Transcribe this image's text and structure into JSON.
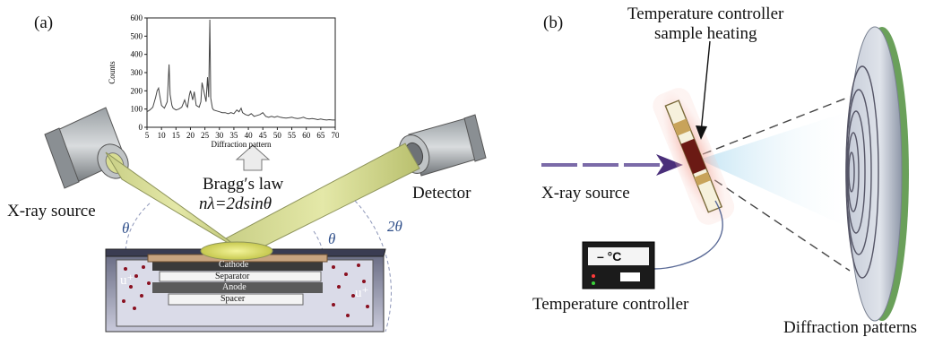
{
  "panel_a": {
    "label": "(a)",
    "bragg_title": "Bragg′s law",
    "bragg_equation": "nλ=2dsinθ",
    "xray_source": "X-ray source",
    "detector": "Detector",
    "theta_left": "θ",
    "theta_right": "θ",
    "two_theta": "2θ",
    "cell_layers": [
      "Cathode",
      "Separator",
      "Anode",
      "Spacer"
    ],
    "ion_label": "u⁺",
    "chart_data": {
      "type": "line",
      "title": "",
      "xlabel": "Diffraction pattern",
      "ylabel": "Counts",
      "xlim": [
        5,
        70
      ],
      "ylim": [
        0,
        600
      ],
      "xticks": [
        5,
        10,
        15,
        20,
        25,
        30,
        35,
        40,
        45,
        50,
        55,
        60,
        65,
        70
      ],
      "yticks": [
        0,
        100,
        200,
        300,
        400,
        500,
        600
      ],
      "series": [
        {
          "x": [
            5,
            6,
            7,
            8,
            8.5,
            9,
            9.4,
            10,
            11,
            12,
            12.6,
            13,
            13.6,
            14,
            15,
            16,
            17,
            18,
            18.6,
            19,
            19.6,
            20,
            20.8,
            21.3,
            22,
            23,
            23.6,
            24,
            24.8,
            25.4,
            25.9,
            26.3,
            26.7,
            27,
            27.6,
            28,
            29,
            30,
            31,
            32,
            33,
            34,
            35,
            36,
            36.8,
            37.5,
            38,
            39,
            40,
            41,
            42,
            43,
            44,
            45,
            46,
            47,
            48,
            49,
            50,
            51,
            52,
            53,
            54,
            55,
            56,
            57,
            58,
            59,
            60,
            61,
            62,
            63,
            64,
            65,
            66,
            67,
            68,
            69,
            70
          ],
          "y": [
            85,
            95,
            110,
            165,
            200,
            215,
            175,
            120,
            105,
            140,
            345,
            180,
            120,
            105,
            95,
            100,
            110,
            150,
            120,
            110,
            175,
            200,
            150,
            195,
            120,
            110,
            140,
            245,
            185,
            140,
            275,
            165,
            590,
            160,
            105,
            95,
            90,
            85,
            80,
            80,
            75,
            80,
            75,
            95,
            85,
            105,
            80,
            70,
            65,
            75,
            60,
            65,
            70,
            80,
            60,
            55,
            60,
            55,
            60,
            55,
            52,
            50,
            52,
            55,
            50,
            48,
            50,
            55,
            48,
            45,
            48,
            45,
            42,
            45,
            42,
            40,
            42,
            40,
            40
          ]
        }
      ]
    }
  },
  "panel_b": {
    "label": "(b)",
    "heating_label_line1": "Temperature controller",
    "heating_label_line2": "sample heating",
    "xray_source": "X-ray source",
    "controller_label": "Temperature controller",
    "controller_display": "– °C",
    "diffraction_label": "Diffraction patterns"
  }
}
